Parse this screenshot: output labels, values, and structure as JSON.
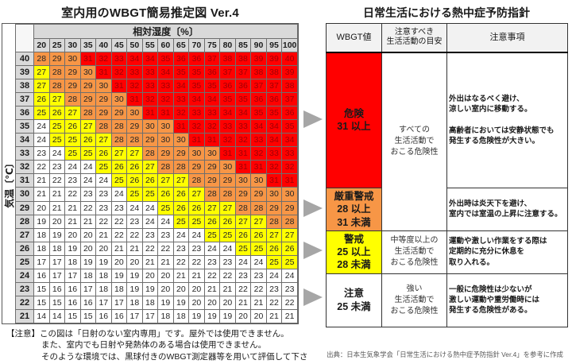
{
  "left_panel": {
    "title": "室内用のWBGT簡易推定図 Ver.4"
  },
  "chart_data": {
    "type": "heatmap",
    "title": "室内用のWBGT簡易推定図 Ver.4",
    "x_axis_label": "相対湿度〔%〕",
    "y_axis_label": "気温〔℃〕",
    "humidity_percent": [
      20,
      25,
      30,
      35,
      40,
      45,
      50,
      55,
      60,
      65,
      70,
      75,
      80,
      85,
      90,
      95,
      100
    ],
    "temperature_c": [
      40,
      39,
      38,
      37,
      36,
      35,
      34,
      33,
      32,
      31,
      30,
      29,
      28,
      27,
      26,
      25,
      24,
      23,
      22,
      21
    ],
    "wbgt_values": [
      [
        28,
        29,
        30,
        31,
        32,
        33,
        34,
        34,
        35,
        36,
        36,
        37,
        38,
        38,
        39,
        39,
        40
      ],
      [
        27,
        28,
        29,
        30,
        31,
        32,
        33,
        33,
        34,
        35,
        35,
        36,
        37,
        37,
        38,
        38,
        39
      ],
      [
        27,
        28,
        29,
        29,
        30,
        31,
        32,
        33,
        33,
        34,
        35,
        35,
        36,
        36,
        37,
        37,
        38
      ],
      [
        26,
        27,
        28,
        29,
        29,
        30,
        31,
        32,
        32,
        33,
        34,
        34,
        35,
        35,
        36,
        36,
        37
      ],
      [
        25,
        26,
        27,
        28,
        29,
        29,
        30,
        31,
        31,
        32,
        33,
        33,
        34,
        34,
        35,
        35,
        36
      ],
      [
        24,
        25,
        26,
        27,
        28,
        28,
        29,
        30,
        30,
        31,
        32,
        32,
        33,
        33,
        34,
        34,
        35
      ],
      [
        24,
        25,
        25,
        26,
        27,
        28,
        28,
        29,
        30,
        30,
        31,
        31,
        32,
        32,
        33,
        34,
        34
      ],
      [
        23,
        24,
        25,
        25,
        26,
        27,
        27,
        28,
        29,
        29,
        30,
        30,
        31,
        31,
        32,
        33,
        33
      ],
      [
        22,
        23,
        24,
        24,
        25,
        26,
        26,
        27,
        28,
        28,
        29,
        29,
        30,
        31,
        31,
        32,
        32
      ],
      [
        21,
        22,
        23,
        24,
        24,
        25,
        26,
        26,
        27,
        27,
        28,
        29,
        29,
        30,
        30,
        31,
        31
      ],
      [
        21,
        21,
        22,
        23,
        23,
        24,
        25,
        25,
        26,
        26,
        27,
        28,
        28,
        29,
        29,
        30,
        30
      ],
      [
        20,
        21,
        21,
        22,
        23,
        23,
        24,
        24,
        25,
        26,
        26,
        27,
        27,
        28,
        28,
        29,
        29
      ],
      [
        19,
        20,
        21,
        21,
        22,
        22,
        23,
        24,
        24,
        25,
        25,
        26,
        26,
        27,
        27,
        28,
        28
      ],
      [
        18,
        19,
        20,
        20,
        21,
        22,
        22,
        23,
        23,
        24,
        24,
        25,
        25,
        26,
        26,
        27,
        27
      ],
      [
        18,
        18,
        19,
        20,
        20,
        21,
        21,
        22,
        22,
        23,
        23,
        24,
        24,
        25,
        25,
        26,
        26
      ],
      [
        17,
        17,
        18,
        19,
        19,
        20,
        20,
        21,
        21,
        22,
        22,
        23,
        23,
        24,
        24,
        25,
        25
      ],
      [
        16,
        17,
        17,
        18,
        18,
        19,
        19,
        20,
        20,
        21,
        21,
        22,
        22,
        23,
        23,
        24,
        24
      ],
      [
        15,
        16,
        16,
        17,
        18,
        18,
        19,
        19,
        20,
        20,
        20,
        21,
        21,
        22,
        22,
        23,
        23
      ],
      [
        15,
        15,
        16,
        16,
        17,
        17,
        18,
        18,
        19,
        19,
        20,
        20,
        20,
        21,
        21,
        22,
        22
      ],
      [
        14,
        14,
        15,
        15,
        16,
        16,
        17,
        17,
        18,
        18,
        19,
        19,
        19,
        20,
        20,
        21,
        21
      ]
    ],
    "thresholds": {
      "danger_min": 31,
      "severe_min": 28,
      "warning_min": 25
    },
    "colors": {
      "danger": "#ff0000",
      "severe": "#f79646",
      "warning": "#ffff00",
      "caution": "#ffffff",
      "danger_text": "#9c0006",
      "header_gray": "#d9d9d9",
      "arrow_gray": "#a6a6a6"
    }
  },
  "right_panel": {
    "title": "日常生活における熱中症予防指針",
    "headers": [
      "WBGT値",
      "注意すべき\n生活活動の目安",
      "注意事項"
    ],
    "rows": [
      {
        "level": "危険",
        "range": "31 以上",
        "label_text": "危険\n31 以上",
        "color": "#ff0000",
        "activity": "すべての\n生活活動で\nおこる危険性",
        "advice": "外出はなるべく避け、\n涼しい室内に移動する。\n\n高齢者においては安静状態でも\n発生する危険性が大きい。"
      },
      {
        "level": "厳重警戒",
        "range": "28 以上 31 未満",
        "label_text": "厳重警戒\n28 以上\n31 未満",
        "color": "#f79646",
        "activity": "",
        "advice": "外出時は炎天下を避け、\n室内では室温の上昇に注意する。"
      },
      {
        "level": "警戒",
        "range": "25 以上 28 未満",
        "label_text": "警戒\n25 以上\n28 未満",
        "color": "#ffff00",
        "activity": "中等度以上の\n生活活動で\nおこる危険性",
        "advice": "運動や激しい作業をする際は\n定期的に充分に休息を\n取り入れる。"
      },
      {
        "level": "注意",
        "range": "25 未満",
        "label_text": "注意\n25 未満",
        "color": "#ffffff",
        "activity": "強い\n生活活動で\nおこる危険性",
        "advice": "一般に危険性は少ないが\n激しい運動や重労働時には\n発生する危険性がある。"
      }
    ]
  },
  "footnotes": {
    "caution_note": "【注意】この図は「日射のない室内専用」です。屋外では使用できません。\nまた、室内でも日射や発熱体のある場合は使用できません。\nそのような環境では、黒球付きのWBGT測定器等を用いて評価して下さい。",
    "source_note": "出典：日本生気象学会「日常生活における熱中症予防指針 Ver.4」を参考に作成"
  }
}
